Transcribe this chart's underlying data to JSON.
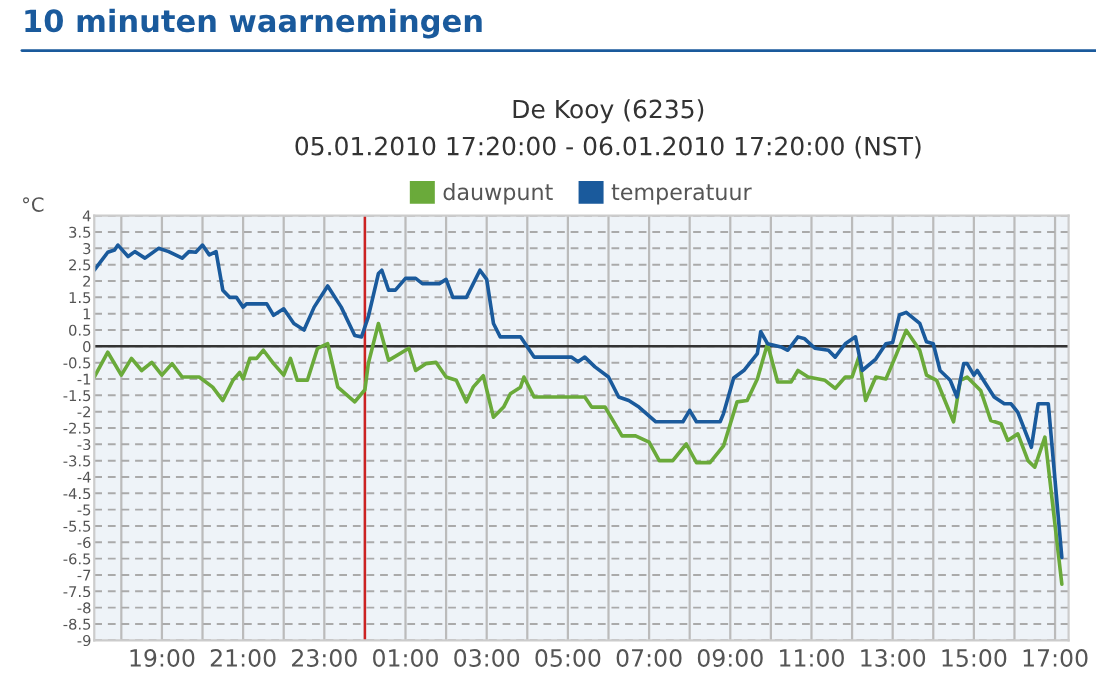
{
  "chart_data": {
    "type": "line",
    "title": "10 minuten waarnemingen",
    "subtitle": "De Kooy (6235)",
    "annotations": [
      "05.01.2010 17:20:00 - 06.01.2010 17:20:00 (NST)"
    ],
    "ylabel": "°C",
    "series": [
      {
        "name": "dauwpunt",
        "color": "#6aaa3a",
        "x": [
          "2010-01-05T17:20",
          "2010-01-05T17:40",
          "2010-01-05T18:00",
          "2010-01-05T18:15",
          "2010-01-05T18:30",
          "2010-01-05T18:45",
          "2010-01-05T19:00",
          "2010-01-05T19:15",
          "2010-01-05T19:30",
          "2010-01-05T19:55",
          "2010-01-05T20:15",
          "2010-01-05T20:30",
          "2010-01-05T20:45",
          "2010-01-05T20:55",
          "2010-01-05T21:00",
          "2010-01-05T21:10",
          "2010-01-05T21:20",
          "2010-01-05T21:30",
          "2010-01-05T21:45",
          "2010-01-05T22:00",
          "2010-01-05T22:10",
          "2010-01-05T22:20",
          "2010-01-05T22:35",
          "2010-01-05T22:50",
          "2010-01-05T23:05",
          "2010-01-05T23:20",
          "2010-01-05T23:45",
          "2010-01-06T00:00",
          "2010-01-06T00:05",
          "2010-01-06T00:20",
          "2010-01-06T00:35",
          "2010-01-06T01:05",
          "2010-01-06T01:15",
          "2010-01-06T01:30",
          "2010-01-06T01:45",
          "2010-01-06T02:00",
          "2010-01-06T02:15",
          "2010-01-06T02:30",
          "2010-01-06T02:40",
          "2010-01-06T02:55",
          "2010-01-06T03:10",
          "2010-01-06T03:25",
          "2010-01-06T03:35",
          "2010-01-06T03:50",
          "2010-01-06T03:55",
          "2010-01-06T04:10",
          "2010-01-06T05:25",
          "2010-01-06T05:35",
          "2010-01-06T05:55",
          "2010-01-06T06:20",
          "2010-01-06T06:40",
          "2010-01-06T07:00",
          "2010-01-06T07:15",
          "2010-01-06T07:35",
          "2010-01-06T07:55",
          "2010-01-06T08:10",
          "2010-01-06T08:30",
          "2010-01-06T08:50",
          "2010-01-06T09:10",
          "2010-01-06T09:25",
          "2010-01-06T09:40",
          "2010-01-06T09:55",
          "2010-01-06T10:10",
          "2010-01-06T10:30",
          "2010-01-06T10:40",
          "2010-01-06T10:55",
          "2010-01-06T11:20",
          "2010-01-06T11:35",
          "2010-01-06T11:50",
          "2010-01-06T12:00",
          "2010-01-06T12:10",
          "2010-01-06T12:20",
          "2010-01-06T12:35",
          "2010-01-06T12:50",
          "2010-01-06T13:05",
          "2010-01-06T13:20",
          "2010-01-06T13:40",
          "2010-01-06T13:50",
          "2010-01-06T14:05",
          "2010-01-06T14:15",
          "2010-01-06T14:30",
          "2010-01-06T14:40",
          "2010-01-06T14:50",
          "2010-01-06T15:10",
          "2010-01-06T15:25",
          "2010-01-06T15:40",
          "2010-01-06T15:50",
          "2010-01-06T16:05",
          "2010-01-06T16:20",
          "2010-01-06T16:30",
          "2010-01-06T16:45",
          "2010-01-06T17:10"
        ],
        "values": [
          -0.94,
          -0.18,
          -0.88,
          -0.37,
          -0.74,
          -0.49,
          -0.88,
          -0.53,
          -0.94,
          -0.94,
          -1.25,
          -1.66,
          -1.04,
          -0.8,
          -1.0,
          -0.37,
          -0.37,
          -0.12,
          -0.53,
          -0.88,
          -0.37,
          -1.04,
          -1.04,
          -0.06,
          0.08,
          -1.25,
          -1.7,
          -1.33,
          -0.53,
          0.7,
          -0.43,
          -0.06,
          -0.74,
          -0.53,
          -0.49,
          -0.94,
          -1.04,
          -1.7,
          -1.25,
          -0.9,
          -2.17,
          -1.86,
          -1.45,
          -1.25,
          -0.94,
          -1.55,
          -1.55,
          -1.86,
          -1.86,
          -2.74,
          -2.74,
          -2.93,
          -3.5,
          -3.5,
          -2.99,
          -3.56,
          -3.56,
          -3.05,
          -1.7,
          -1.66,
          -1.0,
          0.08,
          -1.09,
          -1.09,
          -0.74,
          -0.94,
          -1.04,
          -1.29,
          -0.94,
          -0.94,
          -0.33,
          -1.66,
          -0.94,
          -1.0,
          -0.27,
          0.49,
          -0.12,
          -0.88,
          -1.04,
          -1.55,
          -2.31,
          -1.04,
          -0.94,
          -1.35,
          -2.27,
          -2.37,
          -2.88,
          -2.68,
          -3.5,
          -3.7,
          -2.78,
          -7.28
        ]
      },
      {
        "name": "temperatuur",
        "color": "#1a5a9c",
        "x": [
          "2010-01-05T17:20",
          "2010-01-05T17:40",
          "2010-01-05T17:50",
          "2010-01-05T17:55",
          "2010-01-05T18:10",
          "2010-01-05T18:20",
          "2010-01-05T18:35",
          "2010-01-05T18:55",
          "2010-01-05T19:10",
          "2010-01-05T19:30",
          "2010-01-05T19:40",
          "2010-01-05T19:50",
          "2010-01-05T20:00",
          "2010-01-05T20:10",
          "2010-01-05T20:20",
          "2010-01-05T20:30",
          "2010-01-05T20:40",
          "2010-01-05T20:50",
          "2010-01-05T21:00",
          "2010-01-05T21:05",
          "2010-01-05T21:35",
          "2010-01-05T21:45",
          "2010-01-05T22:00",
          "2010-01-05T22:15",
          "2010-01-05T22:30",
          "2010-01-05T22:45",
          "2010-01-05T23:05",
          "2010-01-05T23:25",
          "2010-01-05T23:45",
          "2010-01-05T23:55",
          "2010-01-06T00:05",
          "2010-01-06T00:20",
          "2010-01-06T00:25",
          "2010-01-06T00:35",
          "2010-01-06T00:45",
          "2010-01-06T01:00",
          "2010-01-06T01:15",
          "2010-01-06T01:25",
          "2010-01-06T01:50",
          "2010-01-06T02:00",
          "2010-01-06T02:10",
          "2010-01-06T02:30",
          "2010-01-06T02:50",
          "2010-01-06T03:00",
          "2010-01-06T03:10",
          "2010-01-06T03:20",
          "2010-01-06T03:50",
          "2010-01-06T04:10",
          "2010-01-06T05:05",
          "2010-01-06T05:15",
          "2010-01-06T05:25",
          "2010-01-06T05:40",
          "2010-01-06T06:00",
          "2010-01-06T06:15",
          "2010-01-06T06:30",
          "2010-01-06T06:45",
          "2010-01-06T07:10",
          "2010-01-06T07:50",
          "2010-01-06T08:00",
          "2010-01-06T08:10",
          "2010-01-06T08:45",
          "2010-01-06T08:50",
          "2010-01-06T09:05",
          "2010-01-06T09:20",
          "2010-01-06T09:40",
          "2010-01-06T09:45",
          "2010-01-06T09:55",
          "2010-01-06T10:15",
          "2010-01-06T10:25",
          "2010-01-06T10:40",
          "2010-01-06T10:50",
          "2010-01-06T11:05",
          "2010-01-06T11:25",
          "2010-01-06T11:35",
          "2010-01-06T11:50",
          "2010-01-06T12:05",
          "2010-01-06T12:15",
          "2010-01-06T12:35",
          "2010-01-06T12:50",
          "2010-01-06T13:00",
          "2010-01-06T13:10",
          "2010-01-06T13:20",
          "2010-01-06T13:40",
          "2010-01-06T13:50",
          "2010-01-06T14:00",
          "2010-01-06T14:10",
          "2010-01-06T14:25",
          "2010-01-06T14:35",
          "2010-01-06T14:45",
          "2010-01-06T14:50",
          "2010-01-06T15:00",
          "2010-01-06T15:05",
          "2010-01-06T15:30",
          "2010-01-06T15:45",
          "2010-01-06T15:55",
          "2010-01-06T16:05",
          "2010-01-06T16:25",
          "2010-01-06T16:35",
          "2010-01-06T16:50",
          "2010-01-06T17:10"
        ],
        "values": [
          2.33,
          2.88,
          2.95,
          3.1,
          2.75,
          2.9,
          2.7,
          3.0,
          2.9,
          2.7,
          2.9,
          2.88,
          3.1,
          2.8,
          2.9,
          1.72,
          1.5,
          1.5,
          1.2,
          1.3,
          1.3,
          0.95,
          1.15,
          0.7,
          0.5,
          1.2,
          1.85,
          1.2,
          0.33,
          0.29,
          0.9,
          2.23,
          2.33,
          1.72,
          1.72,
          2.08,
          2.08,
          1.92,
          1.92,
          2.05,
          1.5,
          1.5,
          2.33,
          2.05,
          0.7,
          0.29,
          0.29,
          -0.33,
          -0.33,
          -0.47,
          -0.33,
          -0.63,
          -0.94,
          -1.55,
          -1.66,
          -1.86,
          -2.31,
          -2.31,
          -1.96,
          -2.31,
          -2.31,
          -2.06,
          -0.97,
          -0.74,
          -0.22,
          0.45,
          0.08,
          -0.02,
          -0.12,
          0.29,
          0.23,
          -0.06,
          -0.12,
          -0.33,
          0.08,
          0.29,
          -0.74,
          -0.39,
          0.08,
          0.12,
          0.96,
          1.04,
          0.7,
          0.14,
          0.08,
          -0.74,
          -1.04,
          -1.55,
          -0.53,
          -0.53,
          -0.88,
          -0.74,
          -1.55,
          -1.76,
          -1.76,
          -2.02,
          -3.09,
          -1.76,
          -1.76,
          -6.46
        ]
      }
    ],
    "xlim": [
      "2010-01-05T17:20",
      "2010-01-06T17:20"
    ],
    "xticks": [
      {
        "value": "2010-01-05T18:00",
        "label": null
      },
      {
        "value": "2010-01-05T19:00",
        "label": "19:00"
      },
      {
        "value": "2010-01-05T20:00",
        "label": null
      },
      {
        "value": "2010-01-05T21:00",
        "label": "21:00"
      },
      {
        "value": "2010-01-05T22:00",
        "label": null
      },
      {
        "value": "2010-01-05T23:00",
        "label": "23:00"
      },
      {
        "value": "2010-01-06T00:00",
        "label": null
      },
      {
        "value": "2010-01-06T01:00",
        "label": "01:00"
      },
      {
        "value": "2010-01-06T02:00",
        "label": null
      },
      {
        "value": "2010-01-06T03:00",
        "label": "03:00"
      },
      {
        "value": "2010-01-06T04:00",
        "label": null
      },
      {
        "value": "2010-01-06T05:00",
        "label": "05:00"
      },
      {
        "value": "2010-01-06T06:00",
        "label": null
      },
      {
        "value": "2010-01-06T07:00",
        "label": "07:00"
      },
      {
        "value": "2010-01-06T08:00",
        "label": null
      },
      {
        "value": "2010-01-06T09:00",
        "label": "09:00"
      },
      {
        "value": "2010-01-06T10:00",
        "label": null
      },
      {
        "value": "2010-01-06T11:00",
        "label": "11:00"
      },
      {
        "value": "2010-01-06T12:00",
        "label": null
      },
      {
        "value": "2010-01-06T13:00",
        "label": "13:00"
      },
      {
        "value": "2010-01-06T14:00",
        "label": null
      },
      {
        "value": "2010-01-06T15:00",
        "label": "15:00"
      },
      {
        "value": "2010-01-06T16:00",
        "label": null
      },
      {
        "value": "2010-01-06T17:00",
        "label": "17:00"
      }
    ],
    "ylim": [
      -9,
      4
    ],
    "yticks": [
      -9,
      -8.5,
      -8,
      -7.5,
      -7,
      -6.5,
      -6,
      -5.5,
      -5,
      -4.5,
      -4,
      -3.5,
      -3,
      -2.5,
      -2,
      -1.5,
      -1,
      -0.5,
      0,
      0.5,
      1,
      1.5,
      2,
      2.5,
      3,
      3.5,
      4
    ],
    "ref_lines": [
      {
        "axis": "y",
        "value": 0,
        "color": "#333333"
      },
      {
        "axis": "x",
        "value": "2010-01-06T00:00",
        "color": "#cc2222"
      }
    ],
    "grid": true,
    "legend": "top",
    "marker": "none",
    "line_style": "solid"
  }
}
